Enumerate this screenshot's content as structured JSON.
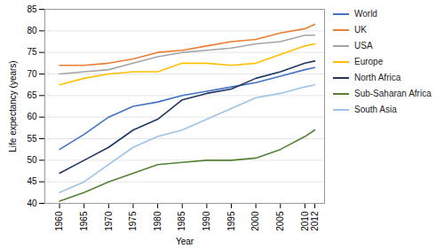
{
  "chart_data": {
    "type": "line",
    "x": [
      1960,
      1965,
      1970,
      1975,
      1980,
      1985,
      1990,
      1995,
      2000,
      2005,
      2010,
      2012
    ],
    "series": [
      {
        "name": "World",
        "color": "#4472C4",
        "values": [
          52.5,
          56.0,
          60.0,
          62.5,
          63.5,
          65.0,
          66.0,
          67.0,
          68.0,
          69.5,
          71.0,
          71.5
        ]
      },
      {
        "name": "UK",
        "color": "#ED7D31",
        "values": [
          72.0,
          72.0,
          72.5,
          73.5,
          75.0,
          75.5,
          76.5,
          77.5,
          78.0,
          79.5,
          80.5,
          81.5
        ]
      },
      {
        "name": "USA",
        "color": "#A5A5A5",
        "values": [
          70.0,
          70.5,
          71.0,
          72.5,
          74.0,
          75.0,
          75.5,
          76.0,
          77.0,
          77.5,
          79.0,
          79.0
        ]
      },
      {
        "name": "Europe",
        "color": "#FFC000",
        "values": [
          67.5,
          69.0,
          70.0,
          70.5,
          70.5,
          72.5,
          72.5,
          72.0,
          72.5,
          74.5,
          76.5,
          77.0
        ]
      },
      {
        "name": "North Africa",
        "color": "#1F3864",
        "values": [
          47.0,
          50.0,
          53.0,
          57.0,
          59.5,
          64.0,
          65.5,
          66.5,
          69.0,
          70.5,
          72.5,
          73.0
        ]
      },
      {
        "name": "Sub-Saharan Africa",
        "color": "#548235",
        "values": [
          40.5,
          42.5,
          45.0,
          47.0,
          49.0,
          49.5,
          50.0,
          50.0,
          50.5,
          52.5,
          55.5,
          57.0
        ]
      },
      {
        "name": "South Asia",
        "color": "#9DC3E6",
        "values": [
          42.5,
          45.0,
          49.0,
          53.0,
          55.5,
          57.0,
          59.5,
          62.0,
          64.5,
          65.5,
          67.0,
          67.5
        ]
      }
    ],
    "xlabel": "Year",
    "ylabel": "Life expectancy (years)",
    "xlim": [
      1957,
      2014
    ],
    "ylim": [
      40,
      85
    ],
    "xticks": [
      1960,
      1965,
      1970,
      1975,
      1980,
      1985,
      1990,
      1995,
      2000,
      2005,
      2010,
      2012
    ],
    "yticks": [
      40,
      45,
      50,
      55,
      60,
      65,
      70,
      75,
      80,
      85
    ],
    "grid": "y",
    "legend": "right"
  }
}
